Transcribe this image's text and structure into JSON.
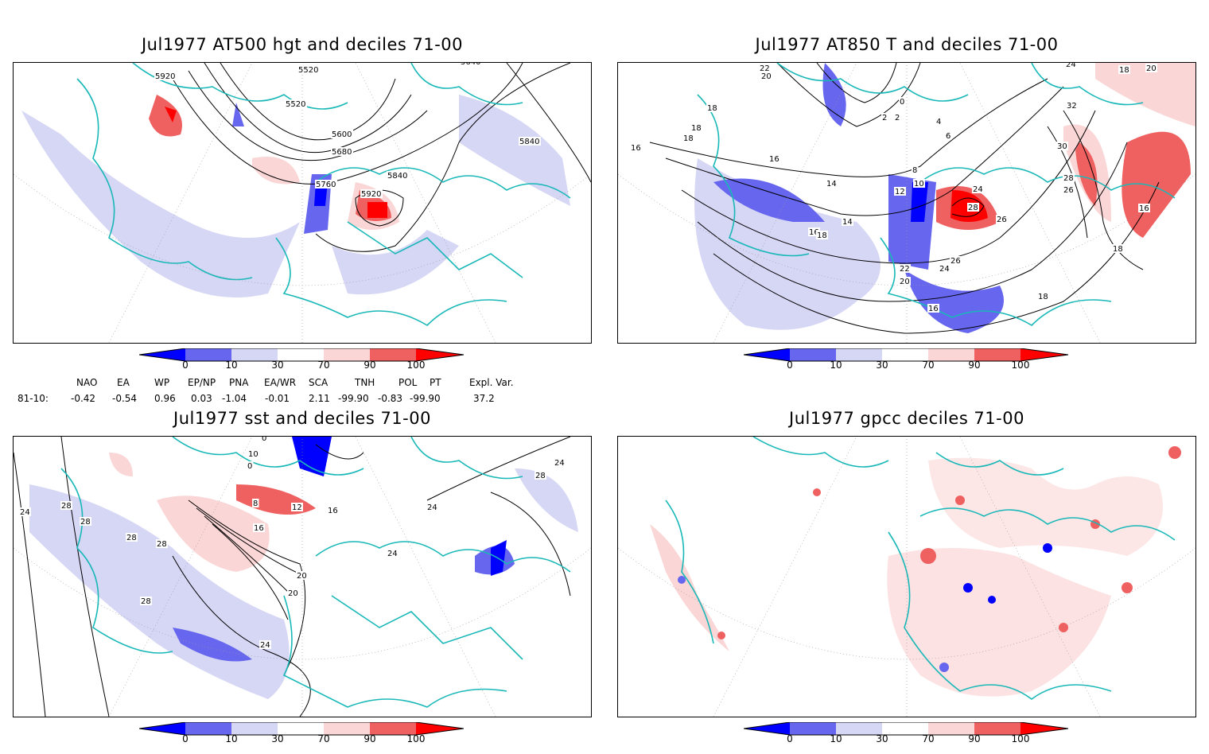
{
  "panels": {
    "p1": {
      "title": "Jul1977 AT500 hgt and deciles 71-00",
      "labels": [
        "5920",
        "5520",
        "5520",
        "5640",
        "5600",
        "5680",
        "5840",
        "5760",
        "5840",
        "5920"
      ]
    },
    "p2": {
      "title": "Jul1977 AT850 T and deciles 71-00",
      "labels": [
        "22",
        "20",
        "18",
        "18",
        "0",
        "2",
        "2",
        "4",
        "6",
        "16",
        "18",
        "16",
        "14",
        "14",
        "16",
        "18",
        "8",
        "10",
        "12",
        "24",
        "28",
        "26",
        "26",
        "24",
        "22",
        "20",
        "16",
        "18",
        "24",
        "32",
        "30",
        "28",
        "26",
        "16",
        "18",
        "20",
        "18"
      ]
    },
    "p3": {
      "title": "Jul1977 sst and deciles 71-00",
      "labels": [
        "0",
        "10",
        "0",
        "24",
        "28",
        "28",
        "28",
        "28",
        "8",
        "12",
        "16",
        "16",
        "24",
        "20",
        "20",
        "24",
        "28",
        "28",
        "24",
        "24"
      ]
    },
    "p4": {
      "title": "Jul1977 gpcc deciles 71-00",
      "labels": []
    }
  },
  "colorbar": {
    "ticks": [
      "0",
      "10",
      "30",
      "70",
      "90",
      "100"
    ],
    "colors": [
      "#0000ff",
      "#6666ee",
      "#d6d6f5",
      "#ffffff",
      "#fbd6d6",
      "#ef6060",
      "#ff0000"
    ]
  },
  "indices": {
    "headers": [
      "NAO",
      "EA",
      "WP",
      "EP/NP",
      "PNA",
      "EA/WR",
      "SCA",
      "TNH",
      "POL",
      "PT",
      "Expl. Var."
    ],
    "period": "81-10:",
    "values": [
      "-0.42",
      "-0.54",
      "0.96",
      "0.03",
      "-1.04",
      "-0.01",
      "2.11",
      "-99.90",
      "-0.83",
      "-99.90",
      "37.2"
    ]
  },
  "colors": {
    "coast": "#19b8b8",
    "contour": "#000000",
    "grid": "#999999"
  }
}
